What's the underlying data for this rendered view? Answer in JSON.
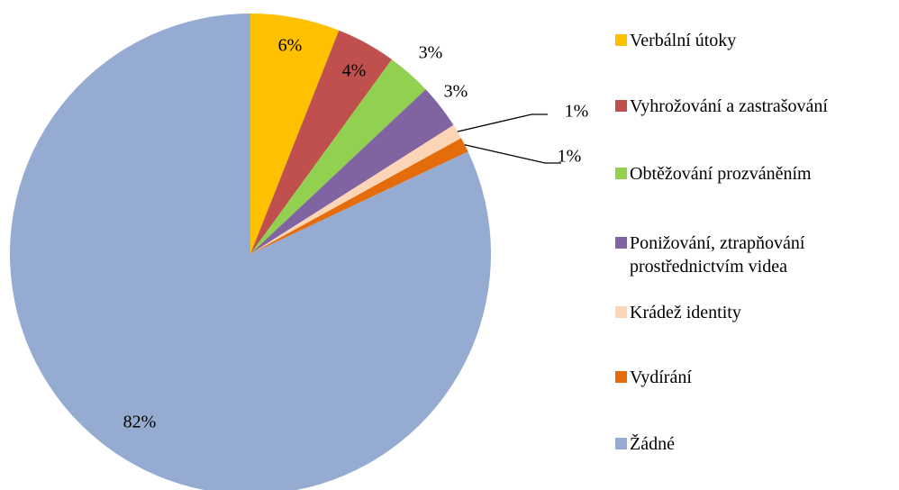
{
  "chart_data": {
    "type": "pie",
    "categories": [
      "Verbální útoky",
      "Vyhrožování a zastrašování",
      "Obtěžování prozváněním",
      "Ponižování, ztrapňování prostřednictvím videa",
      "Krádež identity",
      "Vydírání",
      "Žádné"
    ],
    "values": [
      6,
      4,
      3,
      3,
      1,
      1,
      82
    ],
    "value_labels": [
      "6%",
      "4%",
      "3%",
      "3%",
      "1%",
      "1%",
      "82%"
    ],
    "colors": [
      "#ffc000",
      "#c0504d",
      "#92d050",
      "#8064a2",
      "#fbd5b5",
      "#e46c0a",
      "#95abd1"
    ],
    "legend": "right"
  }
}
